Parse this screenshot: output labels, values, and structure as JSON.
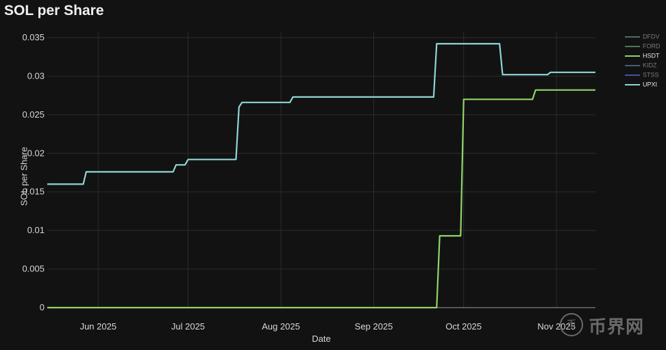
{
  "chart_data": {
    "type": "line",
    "title": "SOL per Share",
    "xlabel": "Date",
    "ylabel": "SOL per Share",
    "x_axis": {
      "start": "2025-05-15",
      "end": "2025-11-14",
      "ticks": [
        {
          "date": "2025-06-01",
          "label": "Jun 2025"
        },
        {
          "date": "2025-07-01",
          "label": "Jul 2025"
        },
        {
          "date": "2025-08-01",
          "label": "Aug 2025"
        },
        {
          "date": "2025-09-01",
          "label": "Sep 2025"
        },
        {
          "date": "2025-10-01",
          "label": "Oct 2025"
        },
        {
          "date": "2025-11-01",
          "label": "Nov 2025"
        }
      ]
    },
    "y_axis": {
      "ylim": [
        0,
        0.035
      ],
      "ticks": [
        {
          "value": 0,
          "label": "0"
        },
        {
          "value": 0.005,
          "label": "0.005"
        },
        {
          "value": 0.01,
          "label": "0.01"
        },
        {
          "value": 0.015,
          "label": "0.015"
        },
        {
          "value": 0.02,
          "label": "0.02"
        },
        {
          "value": 0.025,
          "label": "0.025"
        },
        {
          "value": 0.03,
          "label": "0.03"
        },
        {
          "value": 0.035,
          "label": "0.035"
        }
      ]
    },
    "grid": true,
    "legend_position": "right",
    "series": [
      {
        "name": "DFDV",
        "color": "#4a6e66",
        "visible": false,
        "points": []
      },
      {
        "name": "FORD",
        "color": "#4e7a54",
        "visible": false,
        "points": []
      },
      {
        "name": "HSDT",
        "color": "#8fd66a",
        "visible": true,
        "points": [
          {
            "x": "2025-05-15",
            "y": 0
          },
          {
            "x": "2025-09-22",
            "y": 0
          },
          {
            "x": "2025-09-23",
            "y": 0.0093
          },
          {
            "x": "2025-09-30",
            "y": 0.0093
          },
          {
            "x": "2025-10-01",
            "y": 0.027
          },
          {
            "x": "2025-10-24",
            "y": 0.027
          },
          {
            "x": "2025-10-25",
            "y": 0.0282
          },
          {
            "x": "2025-11-14",
            "y": 0.0282
          }
        ]
      },
      {
        "name": "KIDZ",
        "color": "#4a5d7a",
        "visible": false,
        "points": []
      },
      {
        "name": "STSS",
        "color": "#4a50a0",
        "visible": false,
        "points": []
      },
      {
        "name": "UPXI",
        "color": "#8fd6d6",
        "visible": true,
        "points": [
          {
            "x": "2025-05-15",
            "y": 0.016
          },
          {
            "x": "2025-05-27",
            "y": 0.016
          },
          {
            "x": "2025-05-28",
            "y": 0.0176
          },
          {
            "x": "2025-06-26",
            "y": 0.0176
          },
          {
            "x": "2025-06-27",
            "y": 0.0185
          },
          {
            "x": "2025-06-30",
            "y": 0.0185
          },
          {
            "x": "2025-07-01",
            "y": 0.0192
          },
          {
            "x": "2025-07-17",
            "y": 0.0192
          },
          {
            "x": "2025-07-18",
            "y": 0.026
          },
          {
            "x": "2025-07-19",
            "y": 0.0266
          },
          {
            "x": "2025-08-04",
            "y": 0.0266
          },
          {
            "x": "2025-08-05",
            "y": 0.0273
          },
          {
            "x": "2025-09-21",
            "y": 0.0273
          },
          {
            "x": "2025-09-22",
            "y": 0.0342
          },
          {
            "x": "2025-10-13",
            "y": 0.0342
          },
          {
            "x": "2025-10-14",
            "y": 0.0302
          },
          {
            "x": "2025-10-29",
            "y": 0.0302
          },
          {
            "x": "2025-10-30",
            "y": 0.0305
          },
          {
            "x": "2025-11-14",
            "y": 0.0305
          }
        ]
      }
    ]
  },
  "watermark": {
    "circle_text": "币",
    "text": "币界网"
  }
}
